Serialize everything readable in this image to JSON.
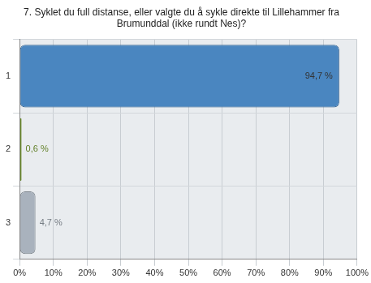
{
  "chart_data": {
    "type": "bar",
    "orientation": "horizontal",
    "title": [
      "7. Syklet du full distanse, eller valgte du å sykle direkte til Lillehammer fra",
      "Brumunddal (ikke rundt Nes)?"
    ],
    "categories": [
      "1",
      "2",
      "3"
    ],
    "values": [
      94.7,
      0.6,
      4.7
    ],
    "value_labels": [
      "94,7 %",
      "0,6 %",
      "4,7 %"
    ],
    "colors": [
      "#4a86c0",
      "#8db83a",
      "#a9b2bd"
    ],
    "xlim": [
      0,
      100
    ],
    "xticks": [
      {
        "value": 0,
        "label": "0%"
      },
      {
        "value": 10,
        "label": "10%"
      },
      {
        "value": 20,
        "label": "20%"
      },
      {
        "value": 30,
        "label": "30%"
      },
      {
        "value": 40,
        "label": "40%"
      },
      {
        "value": 50,
        "label": "50%"
      },
      {
        "value": 60,
        "label": "60%"
      },
      {
        "value": 70,
        "label": "70%"
      },
      {
        "value": 80,
        "label": "80%"
      },
      {
        "value": 90,
        "label": "90%"
      },
      {
        "value": 100,
        "label": "100%"
      }
    ],
    "grid": true,
    "data_labels": true
  }
}
